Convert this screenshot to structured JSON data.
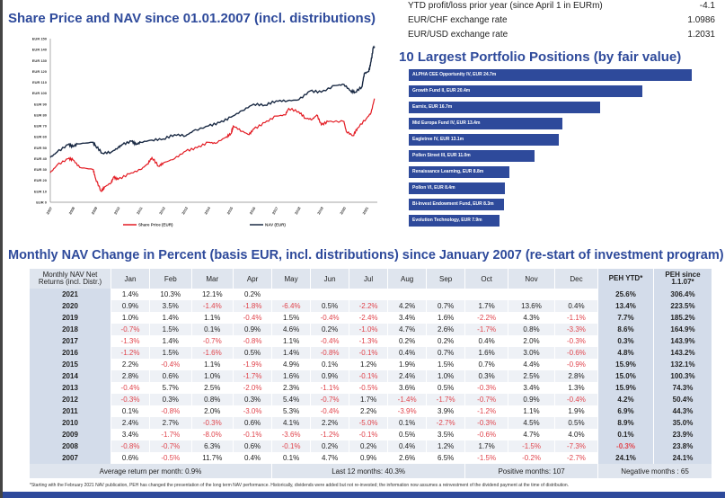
{
  "info": [
    {
      "label": "YTD profit/loss prior year (since April 1 in EURm)",
      "value": "-4.1"
    },
    {
      "label": "EUR/CHF exchange rate",
      "value": "1.0986"
    },
    {
      "label": "EUR/USD exchange rate",
      "value": "1.2031"
    }
  ],
  "titles": {
    "chart": "Share Price and NAV since 01.01.2007 (incl. distributions)",
    "positions": "10 Largest Portfolio Positions (by fair value)",
    "table": "Monthly NAV Change in Percent (basis EUR, incl. distributions) since January 2007 (re-start of investment program)"
  },
  "chart_data": {
    "type": "line",
    "ylim": [
      0,
      150
    ],
    "yticks": [
      "EUR 0",
      "EUR 10",
      "EUR 20",
      "EUR 30",
      "EUR 40",
      "EUR 50",
      "EUR 60",
      "EUR 70",
      "EUR 80",
      "EUR 90",
      "EUR 100",
      "EUR 110",
      "EUR 120",
      "EUR 130",
      "EUR 140",
      "EUR 150"
    ],
    "xticks": [
      "2007",
      "2008",
      "2009",
      "2010",
      "2011",
      "2012",
      "2013",
      "2014",
      "2015",
      "2016",
      "2017",
      "2018",
      "2019",
      "2020",
      "2021"
    ],
    "series": [
      {
        "name": "Share Price (EUR)",
        "color": "#e31b23",
        "x": [
          2007,
          2007.3,
          2007.8,
          2008,
          2008.3,
          2008.9,
          2009,
          2009.25,
          2009.4,
          2009.7,
          2009.8,
          2010,
          2010.5,
          2011,
          2011.3,
          2011.5,
          2011.8,
          2012,
          2012.5,
          2013,
          2013.5,
          2014,
          2014.3,
          2014.8,
          2015,
          2015.1,
          2015.5,
          2015.8,
          2016,
          2016.5,
          2017,
          2017.4,
          2017.55,
          2018,
          2018.3,
          2018.6,
          2018.8,
          2019,
          2019.3,
          2020,
          2020.1,
          2020.4,
          2020.6,
          2021,
          2021.2,
          2021.35
        ],
        "y": [
          27,
          34,
          40,
          39,
          32,
          30,
          22,
          10,
          14,
          18,
          23,
          21,
          26,
          30,
          35,
          41,
          33,
          36,
          40,
          47,
          50,
          55,
          54,
          60,
          63,
          70,
          65,
          62,
          67,
          73,
          79,
          80,
          86,
          83,
          77,
          76,
          80,
          71,
          74,
          74,
          65,
          61,
          68,
          77,
          82,
          95
        ]
      },
      {
        "name": "NAV (EUR)",
        "color": "#1a2a44",
        "x": [
          2007,
          2007.3,
          2007.8,
          2008,
          2008.2,
          2008.9,
          2009,
          2009.3,
          2009.7,
          2010,
          2010.2,
          2010.6,
          2010.8,
          2011,
          2011.5,
          2012,
          2012.5,
          2013,
          2013.3,
          2014,
          2014.5,
          2015,
          2015.5,
          2016,
          2016.5,
          2017,
          2017.5,
          2018,
          2018.5,
          2019,
          2019.6,
          2020,
          2020.3,
          2020.5,
          2020.8,
          2020.9,
          2021.1,
          2021.2,
          2021.3,
          2021.35
        ],
        "y": [
          41,
          46,
          53,
          51,
          53.5,
          55,
          52,
          45,
          46,
          50,
          53,
          56,
          53,
          55,
          57,
          58,
          62,
          61,
          65,
          70,
          73,
          78,
          84,
          90,
          89,
          93,
          93,
          94,
          102,
          101,
          107,
          108,
          102,
          101,
          106,
          118,
          120,
          129,
          142,
          142
        ]
      }
    ]
  },
  "positions": [
    {
      "label": "ALPHA CEE Opportunity IV, EUR 24.7m",
      "value": 24.7
    },
    {
      "label": "Growth Fund II,  EUR 20.4m",
      "value": 20.4
    },
    {
      "label": "Earnix,  EUR 16.7m",
      "value": 16.7
    },
    {
      "label": "Mid Europa Fund IV,  EUR 13.4m",
      "value": 13.4
    },
    {
      "label": "Eagletree IV,  EUR 13.1m",
      "value": 13.1
    },
    {
      "label": "Pollen Street III, EUR 11.0m",
      "value": 11.0
    },
    {
      "label": "Renaissance Learning, EUR 8.8m",
      "value": 8.8
    },
    {
      "label": "Pollon VI, EUR 8.4m",
      "value": 8.4
    },
    {
      "label": "Bi-Invest Endowment Fund, EUR 8.3m",
      "value": 8.3
    },
    {
      "label": "Evolution Technology,  EUR 7.9m",
      "value": 7.9
    }
  ],
  "table": {
    "headers": [
      "Monthly NAV Net Returns (incl. Distr.)",
      "Jan",
      "Feb",
      "Mar",
      "Apr",
      "May",
      "Jun",
      "Jul",
      "Aug",
      "Sep",
      "Oct",
      "Nov",
      "Dec",
      "PEH YTD*",
      "PEH since 1.1.07*"
    ],
    "rows": [
      [
        "2021",
        "1.4%",
        "10.3%",
        "12.1%",
        "0.2%",
        "",
        "",
        "",
        "",
        "",
        "",
        "",
        "",
        "25.6%",
        "306.4%"
      ],
      [
        "2020",
        "0.9%",
        "3.5%",
        "-1.4%",
        "-1.8%",
        "-6.4%",
        "0.5%",
        "-2.2%",
        "4.2%",
        "0.7%",
        "1.7%",
        "13.6%",
        "0.4%",
        "13.4%",
        "223.5%"
      ],
      [
        "2019",
        "1.0%",
        "1.4%",
        "1.1%",
        "-0.4%",
        "1.5%",
        "-0.4%",
        "-2.4%",
        "3.4%",
        "1.6%",
        "-2.2%",
        "4.3%",
        "-1.1%",
        "7.7%",
        "185.2%"
      ],
      [
        "2018",
        "-0.7%",
        "1.5%",
        "0.1%",
        "0.9%",
        "4.6%",
        "0.2%",
        "-1.0%",
        "4.7%",
        "2.6%",
        "-1.7%",
        "0.8%",
        "-3.3%",
        "8.6%",
        "164.9%"
      ],
      [
        "2017",
        "-1.3%",
        "1.4%",
        "-0.7%",
        "-0.8%",
        "1.1%",
        "-0.4%",
        "-1.3%",
        "0.2%",
        "0.2%",
        "0.4%",
        "2.0%",
        "-0.3%",
        "0.3%",
        "143.9%"
      ],
      [
        "2016",
        "-1.2%",
        "1.5%",
        "-1.6%",
        "0.5%",
        "1.4%",
        "-0.8%",
        "-0.1%",
        "0.4%",
        "0.7%",
        "1.6%",
        "3.0%",
        "-0.6%",
        "4.8%",
        "143.2%"
      ],
      [
        "2015",
        "2.2%",
        "-0.4%",
        "1.1%",
        "-1.9%",
        "4.9%",
        "0.1%",
        "1.2%",
        "1.9%",
        "1.5%",
        "0.7%",
        "4.4%",
        "-0.9%",
        "15.9%",
        "132.1%"
      ],
      [
        "2014",
        "2.8%",
        "0.6%",
        "1.0%",
        "-1.7%",
        "1.6%",
        "0.9%",
        "-0.1%",
        "2.4%",
        "1.0%",
        "0.3%",
        "2.5%",
        "2.8%",
        "15.0%",
        "100.3%"
      ],
      [
        "2013",
        "-0.4%",
        "5.7%",
        "2.5%",
        "-2.0%",
        "2.3%",
        "-1.1%",
        "-0.5%",
        "3.6%",
        "0.5%",
        "-0.3%",
        "3.4%",
        "1.3%",
        "15.9%",
        "74.3%"
      ],
      [
        "2012",
        "-0.3%",
        "0.3%",
        "0.8%",
        "0.3%",
        "5.4%",
        "-0.7%",
        "1.7%",
        "-1.4%",
        "-1.7%",
        "-0.7%",
        "0.9%",
        "-0.4%",
        "4.2%",
        "50.4%"
      ],
      [
        "2011",
        "0.1%",
        "-0.8%",
        "2.0%",
        "-3.0%",
        "5.3%",
        "-0.4%",
        "2.2%",
        "-3.9%",
        "3.9%",
        "-1.2%",
        "1.1%",
        "1.9%",
        "6.9%",
        "44.3%"
      ],
      [
        "2010",
        "2.4%",
        "2.7%",
        "-0.3%",
        "0.6%",
        "4.1%",
        "2.2%",
        "-5.0%",
        "0.1%",
        "-2.7%",
        "-0.3%",
        "4.5%",
        "0.5%",
        "8.9%",
        "35.0%"
      ],
      [
        "2009",
        "3.4%",
        "-1.7%",
        "-8.0%",
        "-0.1%",
        "-3.6%",
        "-1.2%",
        "-0.1%",
        "0.5%",
        "3.5%",
        "-0.6%",
        "4.7%",
        "4.0%",
        "0.1%",
        "23.9%"
      ],
      [
        "2008",
        "-0.8%",
        "-0.7%",
        "6.3%",
        "0.6%",
        "-0.1%",
        "0.2%",
        "0.2%",
        "0.4%",
        "1.2%",
        "1.7%",
        "-1.5%",
        "-7.3%",
        "-0.3%",
        "23.8%"
      ],
      [
        "2007",
        "0.6%",
        "-0.5%",
        "11.7%",
        "0.4%",
        "0.1%",
        "4.7%",
        "0.9%",
        "2.6%",
        "6.5%",
        "-1.5%",
        "-0.2%",
        "-2.7%",
        "24.1%",
        "24.1%"
      ]
    ],
    "footer": [
      "Average return per month: 0.9%",
      "Last 12 months: 40.3%",
      "Positive months: 107",
      "Negative months : 65"
    ]
  },
  "footnote": "*Starting with the February 2021 NAV publication, PEH has changed the presentation of the long term NAV performance. Historically, dividends were added but not re-invested; the information now assumes a reinvestment of the dividend payment at the time of distribution."
}
